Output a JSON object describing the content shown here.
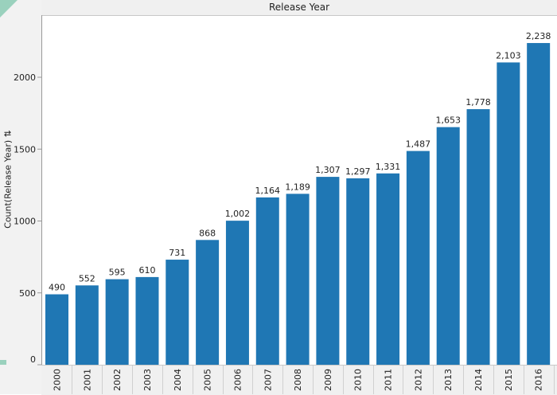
{
  "chart_data": {
    "type": "bar",
    "title": "Release Year",
    "xlabel": "",
    "ylabel": "Count(Release Year)",
    "ylabel_icon": "sort-icon",
    "categories": [
      "2000",
      "2001",
      "2002",
      "2003",
      "2004",
      "2005",
      "2006",
      "2007",
      "2008",
      "2009",
      "2010",
      "2011",
      "2012",
      "2013",
      "2014",
      "2015",
      "2016"
    ],
    "values": [
      490,
      552,
      595,
      610,
      731,
      868,
      1002,
      1164,
      1189,
      1307,
      1297,
      1331,
      1487,
      1653,
      1778,
      2103,
      2238
    ],
    "value_labels": [
      "490",
      "552",
      "595",
      "610",
      "731",
      "868",
      "1,002",
      "1,164",
      "1,189",
      "1,307",
      "1,297",
      "1,331",
      "1,487",
      "1,653",
      "1,778",
      "2,103",
      "2,238"
    ],
    "yticks": [
      0,
      500,
      1000,
      1500,
      2000
    ],
    "ytick_labels": [
      "0",
      "500",
      "1000",
      "1500",
      "2000"
    ],
    "ylim": [
      0,
      2350
    ],
    "grid": false,
    "bar_color": "#1f77b4"
  }
}
